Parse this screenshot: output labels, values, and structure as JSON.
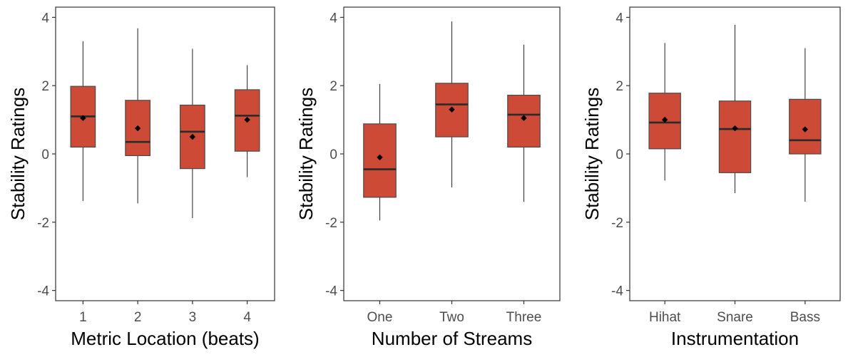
{
  "chart_data": [
    {
      "type": "box",
      "xlabel": "Metric Location (beats)",
      "ylabel": "Stability Ratings",
      "ylim": [
        -4.3,
        4.3
      ],
      "yticks": [
        "4",
        "2",
        "0",
        "-2",
        "-4"
      ],
      "yticks_values": [
        4,
        2,
        0,
        -2,
        -4
      ],
      "box_color": "#cc4a36",
      "categories": [
        "1",
        "2",
        "3",
        "4"
      ],
      "boxes": [
        {
          "whisker_low": -1.38,
          "q1": 0.2,
          "median": 1.1,
          "q3": 1.98,
          "whisker_high": 3.3,
          "mean": 1.05
        },
        {
          "whisker_low": -1.45,
          "q1": -0.05,
          "median": 0.35,
          "q3": 1.57,
          "whisker_high": 3.68,
          "mean": 0.75
        },
        {
          "whisker_low": -1.88,
          "q1": -0.43,
          "median": 0.65,
          "q3": 1.43,
          "whisker_high": 3.08,
          "mean": 0.5
        },
        {
          "whisker_low": -0.68,
          "q1": 0.08,
          "median": 1.12,
          "q3": 1.88,
          "whisker_high": 2.6,
          "mean": 1.0
        }
      ]
    },
    {
      "type": "box",
      "xlabel": "Number of Streams",
      "ylabel": "Stability Ratings",
      "ylim": [
        -4.3,
        4.3
      ],
      "yticks": [
        "4",
        "2",
        "0",
        "-2",
        "-4"
      ],
      "yticks_values": [
        4,
        2,
        0,
        -2,
        -4
      ],
      "box_color": "#cc4a36",
      "categories": [
        "One",
        "Two",
        "Three"
      ],
      "boxes": [
        {
          "whisker_low": -1.95,
          "q1": -1.27,
          "median": -0.45,
          "q3": 0.88,
          "whisker_high": 2.05,
          "mean": -0.1
        },
        {
          "whisker_low": -0.98,
          "q1": 0.5,
          "median": 1.45,
          "q3": 2.07,
          "whisker_high": 3.88,
          "mean": 1.3
        },
        {
          "whisker_low": -1.4,
          "q1": 0.2,
          "median": 1.15,
          "q3": 1.72,
          "whisker_high": 3.2,
          "mean": 1.05
        }
      ]
    },
    {
      "type": "box",
      "xlabel": "Instrumentation",
      "ylabel": "Stability Ratings",
      "ylim": [
        -4.3,
        4.3
      ],
      "yticks": [
        "4",
        "2",
        "0",
        "-2",
        "-4"
      ],
      "yticks_values": [
        4,
        2,
        0,
        -2,
        -4
      ],
      "box_color": "#cc4a36",
      "categories": [
        "Hihat",
        "Snare",
        "Bass"
      ],
      "boxes": [
        {
          "whisker_low": -0.78,
          "q1": 0.15,
          "median": 0.92,
          "q3": 1.78,
          "whisker_high": 3.25,
          "mean": 1.0
        },
        {
          "whisker_low": -1.15,
          "q1": -0.55,
          "median": 0.73,
          "q3": 1.55,
          "whisker_high": 3.78,
          "mean": 0.75
        },
        {
          "whisker_low": -1.4,
          "q1": 0.0,
          "median": 0.4,
          "q3": 1.6,
          "whisker_high": 3.1,
          "mean": 0.72
        }
      ]
    }
  ]
}
